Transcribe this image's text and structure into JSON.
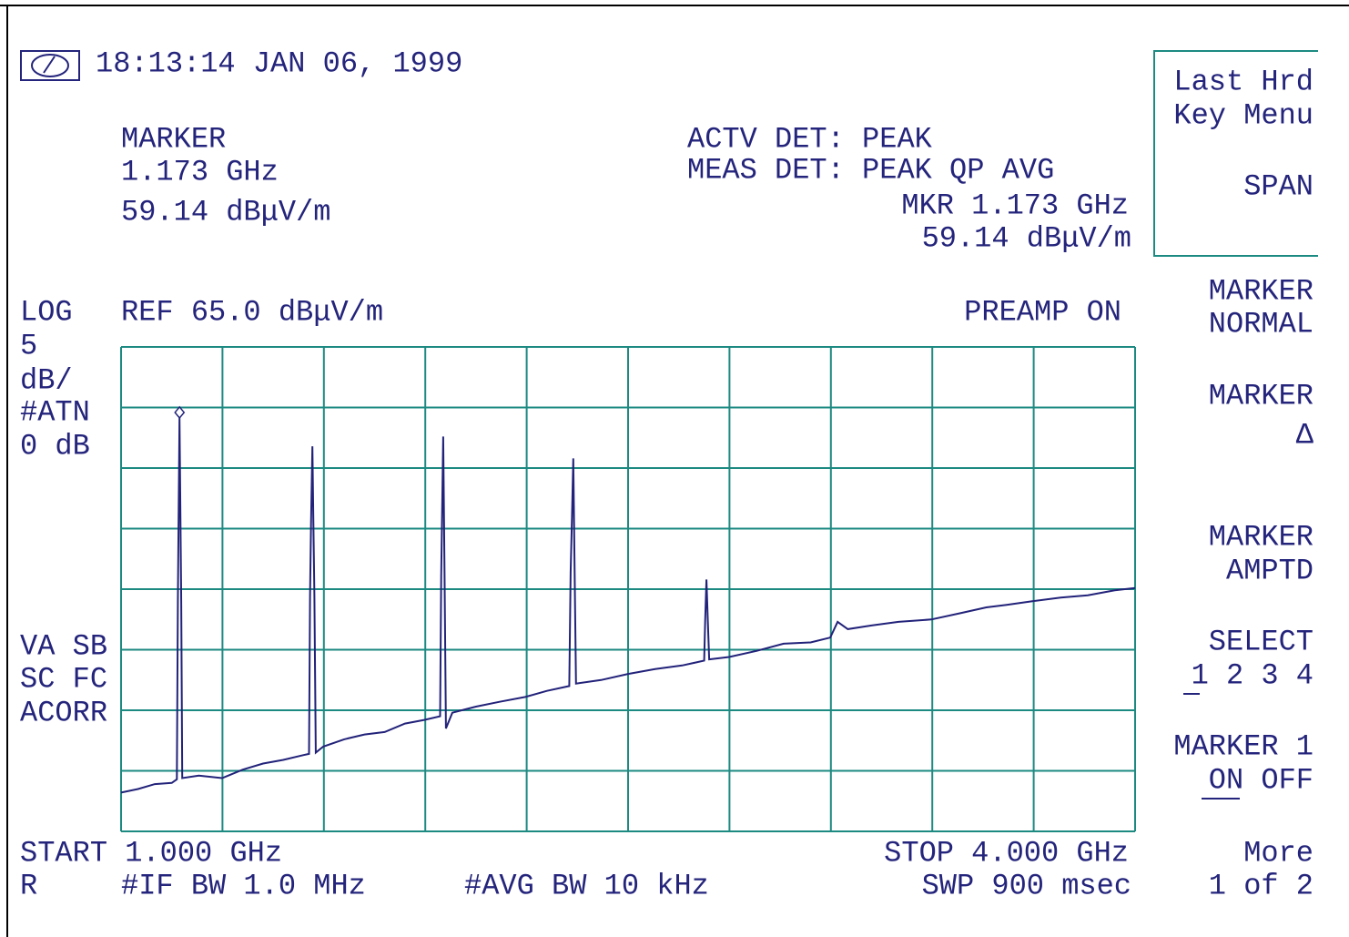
{
  "header": {
    "timestamp": "18:13:14 JAN 06, 1999",
    "marker_label": "MARKER",
    "marker_freq": "1.173 GHz",
    "marker_ampl": "59.14 dBμV/m",
    "actv_det": "ACTV DET: PEAK",
    "meas_det": "MEAS DET: PEAK QP AVG",
    "mkr_freq": "MKR 1.173 GHz",
    "mkr_ampl": "59.14 dBμV/m"
  },
  "scale": {
    "mode": "LOG",
    "ref": "REF 65.0 dBμV/m",
    "preamp": "PREAMP ON",
    "left_labels": [
      "5",
      "dB/",
      "#ATN",
      "0 dB"
    ],
    "status_labels": [
      "VA SB",
      "SC FC",
      "ACORR"
    ]
  },
  "footer": {
    "start": "START 1.000 GHz",
    "stop": "STOP 4.000 GHz",
    "r": "R",
    "if_bw": "#IF BW 1.0 MHz",
    "avg_bw": "#AVG BW 10 kHz",
    "sweep": "SWP 900 msec"
  },
  "softkeys": [
    {
      "lines": [
        "Last Hrd",
        "Key Menu",
        "SPAN"
      ]
    },
    {
      "lines": [
        "MARKER",
        "NORMAL"
      ]
    },
    {
      "lines": [
        "MARKER",
        "Δ"
      ]
    },
    {
      "lines": [
        "MARKER",
        "AMPTD"
      ]
    },
    {
      "lines": [
        "SELECT",
        "1 2 3 4"
      ]
    },
    {
      "lines": [
        "MARKER 1",
        "ON OFF"
      ]
    },
    {
      "lines": [
        "More",
        "1 of 2"
      ]
    }
  ],
  "chart_data": {
    "type": "line",
    "xlim": [
      1.0,
      4.0
    ],
    "ylim": [
      25,
      65
    ],
    "marker": {
      "x": 1.173,
      "y": 59.14
    },
    "series": [
      {
        "color": "#22227a",
        "x": [
          1.0,
          1.05,
          1.1,
          1.15,
          1.165,
          1.168,
          1.173,
          1.178,
          1.181,
          1.23,
          1.299,
          1.36,
          1.42,
          1.48,
          1.54,
          1.556,
          1.559,
          1.562,
          1.566,
          1.569,
          1.572,
          1.576,
          1.598,
          1.66,
          1.72,
          1.78,
          1.84,
          1.897,
          1.944,
          1.947,
          1.953,
          1.957,
          1.961,
          1.98,
          2.05,
          2.12,
          2.196,
          2.26,
          2.326,
          2.33,
          2.334,
          2.338,
          2.342,
          2.346,
          2.42,
          2.5,
          2.58,
          2.66,
          2.725,
          2.728,
          2.732,
          2.736,
          2.74,
          2.799,
          2.88,
          2.96,
          3.04,
          3.098,
          3.12,
          3.15,
          3.22,
          3.3,
          3.397,
          3.48,
          3.56,
          3.62,
          3.696,
          3.78,
          3.86,
          3.94,
          4.0
        ],
        "values": [
          28.2,
          28.5,
          28.9,
          29.0,
          29.3,
          44.0,
          59.14,
          44.0,
          29.4,
          29.6,
          29.4,
          30.1,
          30.6,
          30.9,
          31.3,
          31.4,
          44.4,
          50.4,
          56.8,
          50.4,
          44.4,
          31.5,
          32.0,
          32.6,
          33.0,
          33.2,
          33.9,
          34.2,
          34.5,
          46.1,
          57.6,
          46.1,
          33.5,
          34.8,
          35.3,
          35.7,
          36.1,
          36.6,
          37.0,
          46.4,
          51.0,
          55.8,
          46.4,
          37.2,
          37.5,
          38.0,
          38.4,
          38.7,
          39.1,
          42.4,
          45.8,
          42.4,
          39.2,
          39.4,
          39.9,
          40.5,
          40.6,
          41.0,
          42.3,
          41.7,
          42.0,
          42.3,
          42.5,
          43.0,
          43.5,
          43.7,
          44.0,
          44.3,
          44.5,
          44.9,
          45.1
        ]
      }
    ]
  }
}
